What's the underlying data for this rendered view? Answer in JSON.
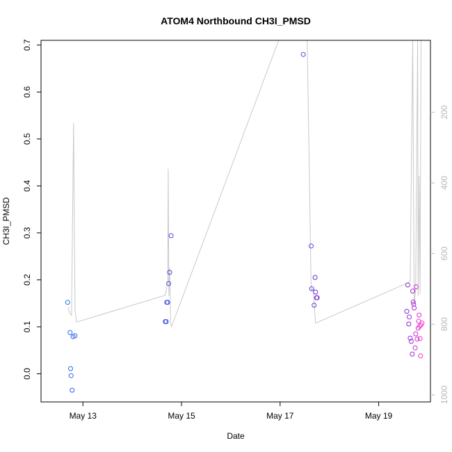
{
  "chart_data": {
    "type": "scatter",
    "title": "ATOM4 Northbound CH3I_PMSD",
    "xlabel": "Date",
    "ylabel": "CH3I_PMSD",
    "x_ticks": [
      {
        "label": "May 13",
        "day": 13
      },
      {
        "label": "May 15",
        "day": 15
      },
      {
        "label": "May 17",
        "day": 17
      },
      {
        "label": "May 19",
        "day": 19
      }
    ],
    "xlim_days": [
      12.15,
      20.05
    ],
    "ylim": [
      -0.06,
      0.71
    ],
    "y_ticks": [
      "0.0",
      "0.1",
      "0.2",
      "0.3",
      "0.4",
      "0.5",
      "0.6",
      "0.7"
    ],
    "y_right_ticks": [
      "200",
      "400",
      "600",
      "800",
      "1000"
    ],
    "y_right_range": [
      -3.5,
      1020
    ],
    "grid": false,
    "colors": {
      "line": "#c8c8c8",
      "axis": "#000000",
      "right_axis": "#b8b8b8",
      "point_start": "#1a73e8",
      "point_mid": "#7a1fd6",
      "point_end": "#ff33cc"
    },
    "points": [
      {
        "day": 12.69,
        "value": 0.152
      },
      {
        "day": 12.74,
        "value": 0.088
      },
      {
        "day": 12.75,
        "value": 0.011
      },
      {
        "day": 12.76,
        "value": -0.004
      },
      {
        "day": 12.78,
        "value": -0.035
      },
      {
        "day": 12.8,
        "value": 0.079
      },
      {
        "day": 12.84,
        "value": 0.081
      },
      {
        "day": 14.67,
        "value": 0.111
      },
      {
        "day": 14.69,
        "value": 0.111
      },
      {
        "day": 14.7,
        "value": 0.152
      },
      {
        "day": 14.72,
        "value": 0.152
      },
      {
        "day": 14.74,
        "value": 0.192
      },
      {
        "day": 14.76,
        "value": 0.216
      },
      {
        "day": 14.79,
        "value": 0.294
      },
      {
        "day": 17.47,
        "value": 0.68
      },
      {
        "day": 17.63,
        "value": 0.272
      },
      {
        "day": 17.64,
        "value": 0.181
      },
      {
        "day": 17.69,
        "value": 0.146
      },
      {
        "day": 17.71,
        "value": 0.205
      },
      {
        "day": 17.72,
        "value": 0.174
      },
      {
        "day": 17.74,
        "value": 0.162
      },
      {
        "day": 17.75,
        "value": 0.162
      },
      {
        "day": 19.57,
        "value": 0.133
      },
      {
        "day": 19.59,
        "value": 0.189
      },
      {
        "day": 19.61,
        "value": 0.106
      },
      {
        "day": 19.62,
        "value": 0.121
      },
      {
        "day": 19.64,
        "value": 0.076
      },
      {
        "day": 19.66,
        "value": 0.069
      },
      {
        "day": 19.68,
        "value": 0.042
      },
      {
        "day": 19.69,
        "value": 0.176
      },
      {
        "day": 19.7,
        "value": 0.153
      },
      {
        "day": 19.71,
        "value": 0.148
      },
      {
        "day": 19.72,
        "value": 0.14
      },
      {
        "day": 19.74,
        "value": 0.055
      },
      {
        "day": 19.75,
        "value": 0.085
      },
      {
        "day": 19.76,
        "value": 0.185
      },
      {
        "day": 19.78,
        "value": 0.074
      },
      {
        "day": 19.8,
        "value": 0.097
      },
      {
        "day": 19.81,
        "value": 0.112
      },
      {
        "day": 19.82,
        "value": 0.125
      },
      {
        "day": 19.83,
        "value": 0.101
      },
      {
        "day": 19.84,
        "value": 0.075
      },
      {
        "day": 19.85,
        "value": 0.038
      },
      {
        "day": 19.86,
        "value": 0.104
      },
      {
        "day": 19.88,
        "value": 0.108
      }
    ],
    "altitude_trace": [
      {
        "day": 12.7,
        "altitude": 752
      },
      {
        "day": 12.73,
        "altitude": 768
      },
      {
        "day": 12.77,
        "altitude": 775
      },
      {
        "day": 12.81,
        "altitude": 230
      },
      {
        "day": 12.84,
        "altitude": 760
      },
      {
        "day": 12.87,
        "altitude": 794
      },
      {
        "day": 14.67,
        "altitude": 718
      },
      {
        "day": 14.72,
        "altitude": 680
      },
      {
        "day": 14.73,
        "altitude": 360
      },
      {
        "day": 14.745,
        "altitude": 720
      },
      {
        "day": 14.76,
        "altitude": 640
      },
      {
        "day": 14.78,
        "altitude": 800
      },
      {
        "day": 14.8,
        "altitude": 806
      },
      {
        "day": 16.97,
        "altitude": -3.5
      },
      {
        "day": 17.55,
        "altitude": -3.5
      },
      {
        "day": 17.63,
        "altitude": 705
      },
      {
        "day": 17.67,
        "altitude": 700
      },
      {
        "day": 17.72,
        "altitude": 797
      },
      {
        "day": 19.64,
        "altitude": 680
      },
      {
        "day": 19.69,
        "altitude": -3.5
      },
      {
        "day": 19.72,
        "altitude": 745
      },
      {
        "day": 19.75,
        "altitude": 705
      },
      {
        "day": 19.79,
        "altitude": -3.5
      },
      {
        "day": 19.8,
        "altitude": 720
      },
      {
        "day": 19.82,
        "altitude": 380
      },
      {
        "day": 19.84,
        "altitude": 715
      },
      {
        "day": 19.86,
        "altitude": -3.5
      }
    ]
  }
}
